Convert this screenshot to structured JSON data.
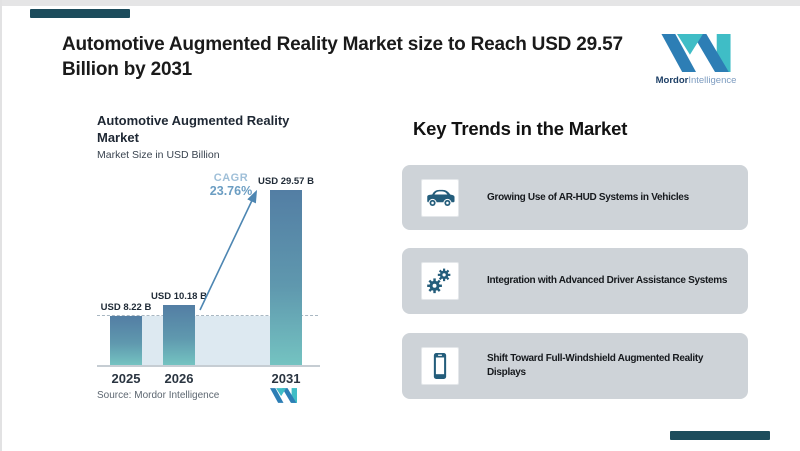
{
  "header": {
    "title_line1": "Automotive Augmented Reality Market size to Reach USD 29.57",
    "title_line2": "Billion by 2031"
  },
  "logo": {
    "name_bold": "Mordor",
    "name_light": "Intelligence"
  },
  "chart": {
    "title_line1": "Automotive Augmented Reality",
    "title_line2": "Market",
    "subtitle": "Market Size in USD Billion",
    "cagr_label": "CAGR",
    "cagr_value": "23.76%",
    "source": "Source: Mordor Intelligence"
  },
  "chart_data": {
    "type": "bar",
    "categories": [
      "2025",
      "2026",
      "2031"
    ],
    "values": [
      8.22,
      10.18,
      29.57
    ],
    "data_labels": [
      "USD 8.22 B",
      "USD 10.18 B",
      "USD 29.57 B"
    ],
    "title": "Automotive Augmented Reality Market",
    "subtitle": "Market Size in USD Billion",
    "xlabel": "",
    "ylabel": "Market Size in USD Billion",
    "ylim": [
      0,
      29.57
    ],
    "grid": false,
    "legend": false,
    "reference_line": {
      "value": 8.22,
      "style": "dashed"
    },
    "annotations": [
      {
        "text": "CAGR 23.76%",
        "type": "growth-arrow",
        "from": "2026",
        "to": "2031"
      }
    ],
    "bar_color_top": "#537ea4",
    "bar_color_bottom": "#74c3c1",
    "source": "Source: Mordor Intelligence"
  },
  "trends": {
    "heading": "Key Trends in the Market",
    "items": [
      {
        "icon": "car-icon",
        "label": "Growing Use of AR-HUD Systems in Vehicles"
      },
      {
        "icon": "gears-icon",
        "label": "Integration with Advanced Driver Assistance Systems"
      },
      {
        "icon": "smartphone-icon",
        "label": "Shift Toward Full-Windshield Augmented Reality Displays"
      }
    ]
  },
  "colors": {
    "accent_bar": "#1c4c5c",
    "icon_teal": "#245d7b",
    "card_bg": "#ced3d8",
    "arrow_blue": "#4d86b2",
    "cagr_label_blue": "#9fbfd8",
    "cagr_value_blue": "#6b9dc2",
    "logo_teal": "#3fbdc6",
    "logo_blue": "#2d7eb5"
  }
}
